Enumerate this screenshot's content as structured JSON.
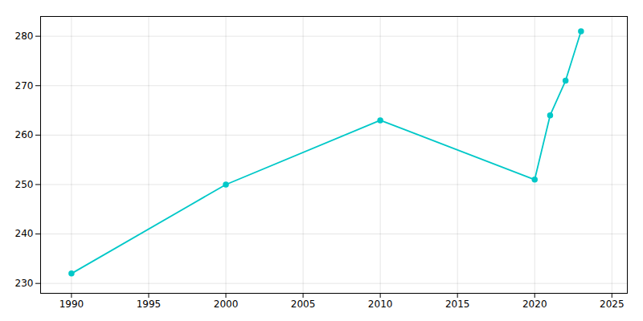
{
  "chart_data": {
    "type": "line",
    "x": [
      1990,
      2000,
      2010,
      2020,
      2021,
      2022,
      2023
    ],
    "values": [
      232,
      250,
      263,
      251,
      264,
      271,
      281
    ],
    "color": "#00C8C8",
    "marker": "circle",
    "xlim": [
      1988,
      2026
    ],
    "ylim": [
      228,
      284
    ],
    "xticks": [
      1990,
      1995,
      2000,
      2005,
      2010,
      2015,
      2020,
      2025
    ],
    "yticks": [
      230,
      240,
      250,
      260,
      270,
      280
    ],
    "grid": true
  }
}
